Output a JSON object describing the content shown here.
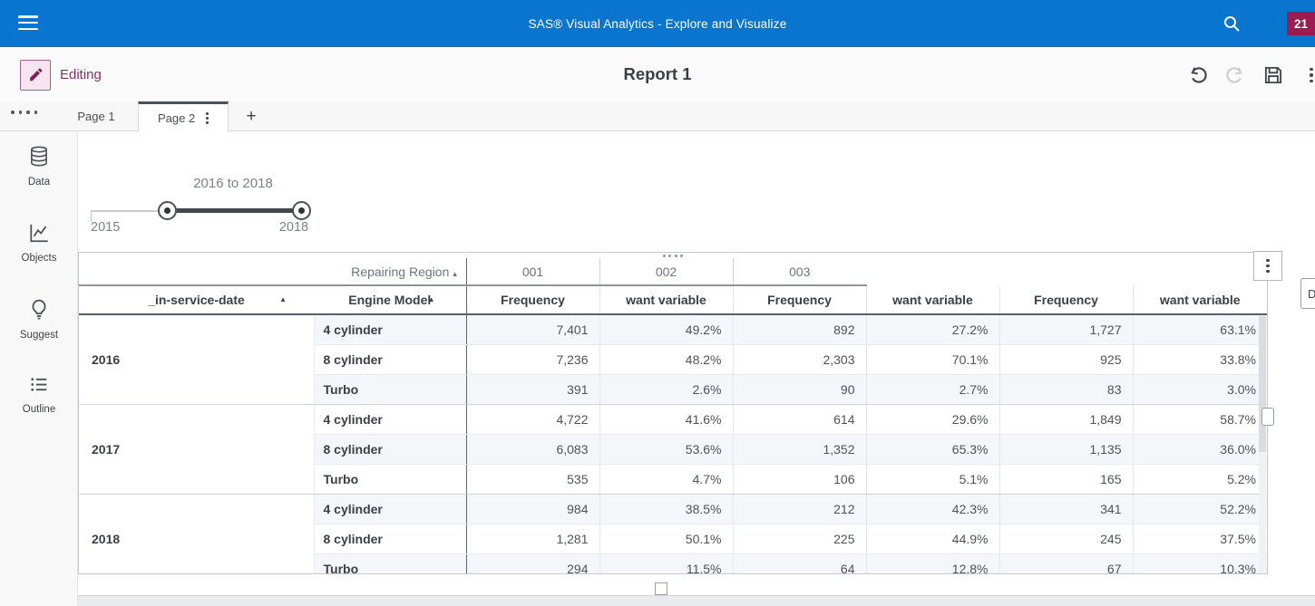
{
  "colors": {
    "app_bar": "#0a75ce",
    "badge": "#9c1c52",
    "editing": "#8e2c6b",
    "editing_bg": "#f6e4ee",
    "editing_border": "#aa5e8e",
    "selection_dark": "#4c5157",
    "stripe": "#f4f6f9"
  },
  "icons": {
    "app_menu": "hamburger-icon",
    "app_search": "search-icon",
    "edit_mode": "pencil-icon",
    "undo": "undo-arrow-icon",
    "redo": "redo-arrow-icon",
    "save": "floppy-disk-icon",
    "toolbar_more": "kebab-icon",
    "rail_overflow": "four-dots-icon",
    "rail_data": "database-icon",
    "rail_objects": "line-chart-icon",
    "rail_suggest": "lightbulb-icon",
    "rail_outline": "list-icon",
    "sort": "ascending-triangle-icon",
    "object_move": "dots-drag-handle-icon",
    "object_menu": "kebab-icon"
  },
  "app_bar": {
    "title": "SAS® Visual Analytics - Explore and Visualize",
    "badge": "21"
  },
  "toolbar": {
    "mode_label": "Editing",
    "report_title": "Report 1"
  },
  "page_tabs": {
    "tabs": [
      {
        "label": "Page 1",
        "active": false
      },
      {
        "label": "Page 2",
        "active": true
      }
    ],
    "add_label": "+"
  },
  "rail": {
    "items": [
      {
        "name": "data",
        "label": "Data"
      },
      {
        "name": "objects",
        "label": "Objects"
      },
      {
        "name": "suggest",
        "label": "Suggest"
      },
      {
        "name": "outline",
        "label": "Outline"
      }
    ]
  },
  "range_slider": {
    "selection_label": "2016 to 2018",
    "start_label": "2015",
    "end_label": "2018"
  },
  "crosstab": {
    "column_field": "Repairing Region",
    "row_field_1": "_in-service-date",
    "row_field_2": "Engine Model",
    "column_groups": [
      "001",
      "002",
      "003"
    ],
    "measure_labels": [
      "Frequency",
      "want variable"
    ],
    "row_groups": [
      {
        "year": "2016",
        "rows": [
          {
            "model": "4 cylinder",
            "values": [
              "7,401",
              "49.2%",
              "892",
              "27.2%",
              "1,727",
              "63.1%"
            ]
          },
          {
            "model": "8 cylinder",
            "values": [
              "7,236",
              "48.2%",
              "2,303",
              "70.1%",
              "925",
              "33.8%"
            ]
          },
          {
            "model": "Turbo",
            "values": [
              "391",
              "2.6%",
              "90",
              "2.7%",
              "83",
              "3.0%"
            ]
          }
        ]
      },
      {
        "year": "2017",
        "rows": [
          {
            "model": "4 cylinder",
            "values": [
              "4,722",
              "41.6%",
              "614",
              "29.6%",
              "1,849",
              "58.7%"
            ]
          },
          {
            "model": "8 cylinder",
            "values": [
              "6,083",
              "53.6%",
              "1,352",
              "65.3%",
              "1,135",
              "36.0%"
            ]
          },
          {
            "model": "Turbo",
            "values": [
              "535",
              "4.7%",
              "106",
              "5.1%",
              "165",
              "5.2%"
            ]
          }
        ]
      },
      {
        "year": "2018",
        "rows": [
          {
            "model": "4 cylinder",
            "values": [
              "984",
              "38.5%",
              "212",
              "42.3%",
              "341",
              "52.2%"
            ]
          },
          {
            "model": "8 cylinder",
            "values": [
              "1,281",
              "50.1%",
              "225",
              "44.9%",
              "245",
              "37.5%"
            ]
          },
          {
            "model": "Turbo",
            "values": [
              "294",
              "11.5%",
              "64",
              "12.8%",
              "67",
              "10.3%"
            ]
          }
        ]
      }
    ]
  },
  "side_panel_button": {
    "label": "D"
  }
}
